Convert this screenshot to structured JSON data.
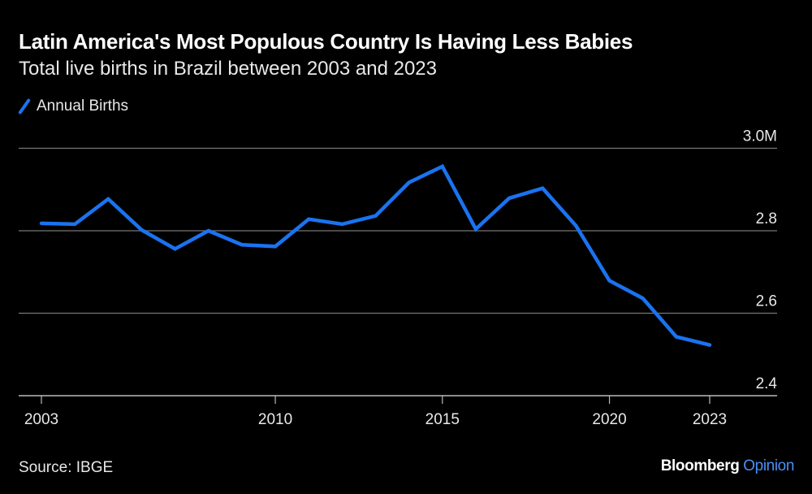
{
  "chart_data": {
    "type": "line",
    "title": "Latin America's Most Populous Country Is Having Less Babies",
    "subtitle": "Total live births in Brazil between 2003 and 2023",
    "xlabel": "",
    "ylabel": "",
    "x": [
      2003,
      2004,
      2005,
      2006,
      2007,
      2008,
      2009,
      2010,
      2011,
      2012,
      2013,
      2014,
      2015,
      2016,
      2017,
      2018,
      2019,
      2020,
      2021,
      2022,
      2023
    ],
    "series": [
      {
        "name": "Annual Births",
        "color": "#1a73f0",
        "values": [
          2.818,
          2.816,
          2.877,
          2.802,
          2.756,
          2.8,
          2.766,
          2.762,
          2.828,
          2.816,
          2.836,
          2.917,
          2.956,
          2.804,
          2.879,
          2.903,
          2.812,
          2.679,
          2.636,
          2.543,
          2.523
        ]
      }
    ],
    "xlim": [
      2003,
      2023
    ],
    "ylim": [
      2.4,
      3.0
    ],
    "x_ticks": [
      2003,
      2010,
      2015,
      2020,
      2023
    ],
    "x_tick_labels": [
      "2003",
      "2010",
      "2015",
      "2020",
      "2023"
    ],
    "y_ticks": [
      2.4,
      2.6,
      2.8,
      3.0
    ],
    "y_tick_labels": [
      "2.4",
      "2.6",
      "2.8",
      "3.0M"
    ],
    "grid": true,
    "legend": "top-left",
    "y_axis_position": "right"
  },
  "footer": {
    "source": "Source: IBGE",
    "brand": "Bloomberg",
    "brand_suffix": "Opinion"
  }
}
